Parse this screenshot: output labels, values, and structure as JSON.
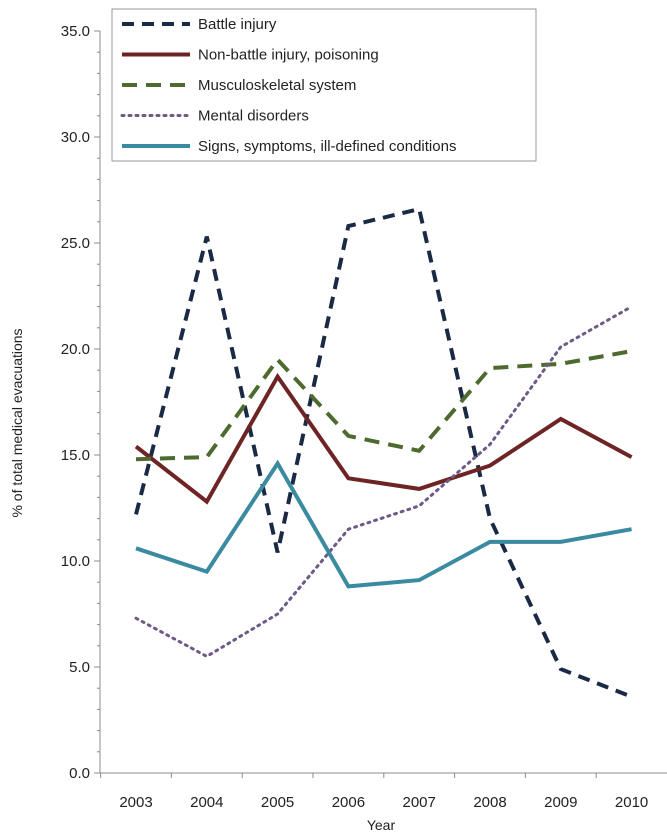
{
  "chart_data": {
    "type": "line",
    "xlabel": "Year",
    "ylabel": "% of total medical evacuations",
    "categories": [
      "2003",
      "2004",
      "2005",
      "2006",
      "2007",
      "2008",
      "2009",
      "2010"
    ],
    "ylim": [
      0,
      35
    ],
    "yticks": [
      "0.0",
      "5.0",
      "10.0",
      "15.0",
      "20.0",
      "25.0",
      "30.0",
      "35.0"
    ],
    "grid": false,
    "legend_position": "top",
    "series": [
      {
        "name": "Battle injury",
        "color": "#1b2a44",
        "dash": "dashed",
        "values": [
          12.2,
          25.3,
          10.4,
          25.8,
          26.6,
          12.0,
          4.9,
          3.6
        ]
      },
      {
        "name": "Non-battle injury, poisoning",
        "color": "#6e2424",
        "dash": "solid",
        "values": [
          15.4,
          12.8,
          18.7,
          13.9,
          13.4,
          14.5,
          16.7,
          14.9
        ]
      },
      {
        "name": "Musculoskeletal system",
        "color": "#4d6a2f",
        "dash": "longdash",
        "values": [
          14.8,
          14.9,
          19.5,
          15.9,
          15.2,
          19.1,
          19.3,
          19.9
        ]
      },
      {
        "name": "Mental disorders",
        "color": "#6e5a86",
        "dash": "dotted",
        "values": [
          7.3,
          5.5,
          7.5,
          11.5,
          12.6,
          15.5,
          20.1,
          22.0
        ]
      },
      {
        "name": "Signs, symptoms, ill-defined conditions",
        "color": "#3a8aa0",
        "dash": "solid",
        "values": [
          10.6,
          9.5,
          14.6,
          8.8,
          9.1,
          10.9,
          10.9,
          11.5
        ]
      }
    ]
  }
}
